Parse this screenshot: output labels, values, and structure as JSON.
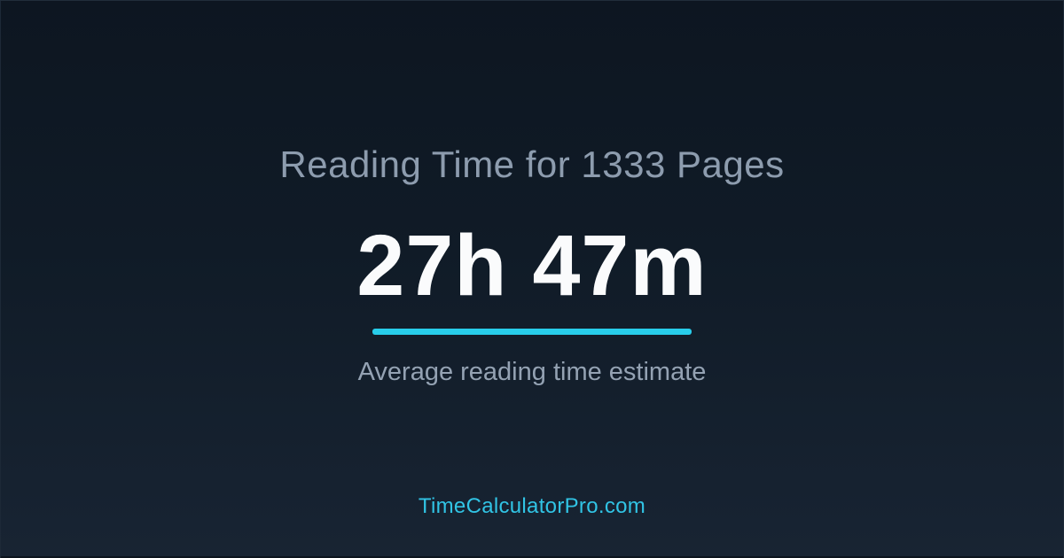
{
  "card": {
    "title": "Reading Time for 1333 Pages",
    "value": "27h 47m",
    "subtitle": "Average reading time estimate",
    "footer_link": "TimeCalculatorPro.com"
  },
  "colors": {
    "background_top": "#0d1621",
    "background_mid": "#101b27",
    "background_bottom": "#182433",
    "title": "#8d9cae",
    "value": "#fafbfc",
    "accent": "#28cdea",
    "subtitle": "#94a2b3",
    "footer_link": "#31c4e5"
  }
}
